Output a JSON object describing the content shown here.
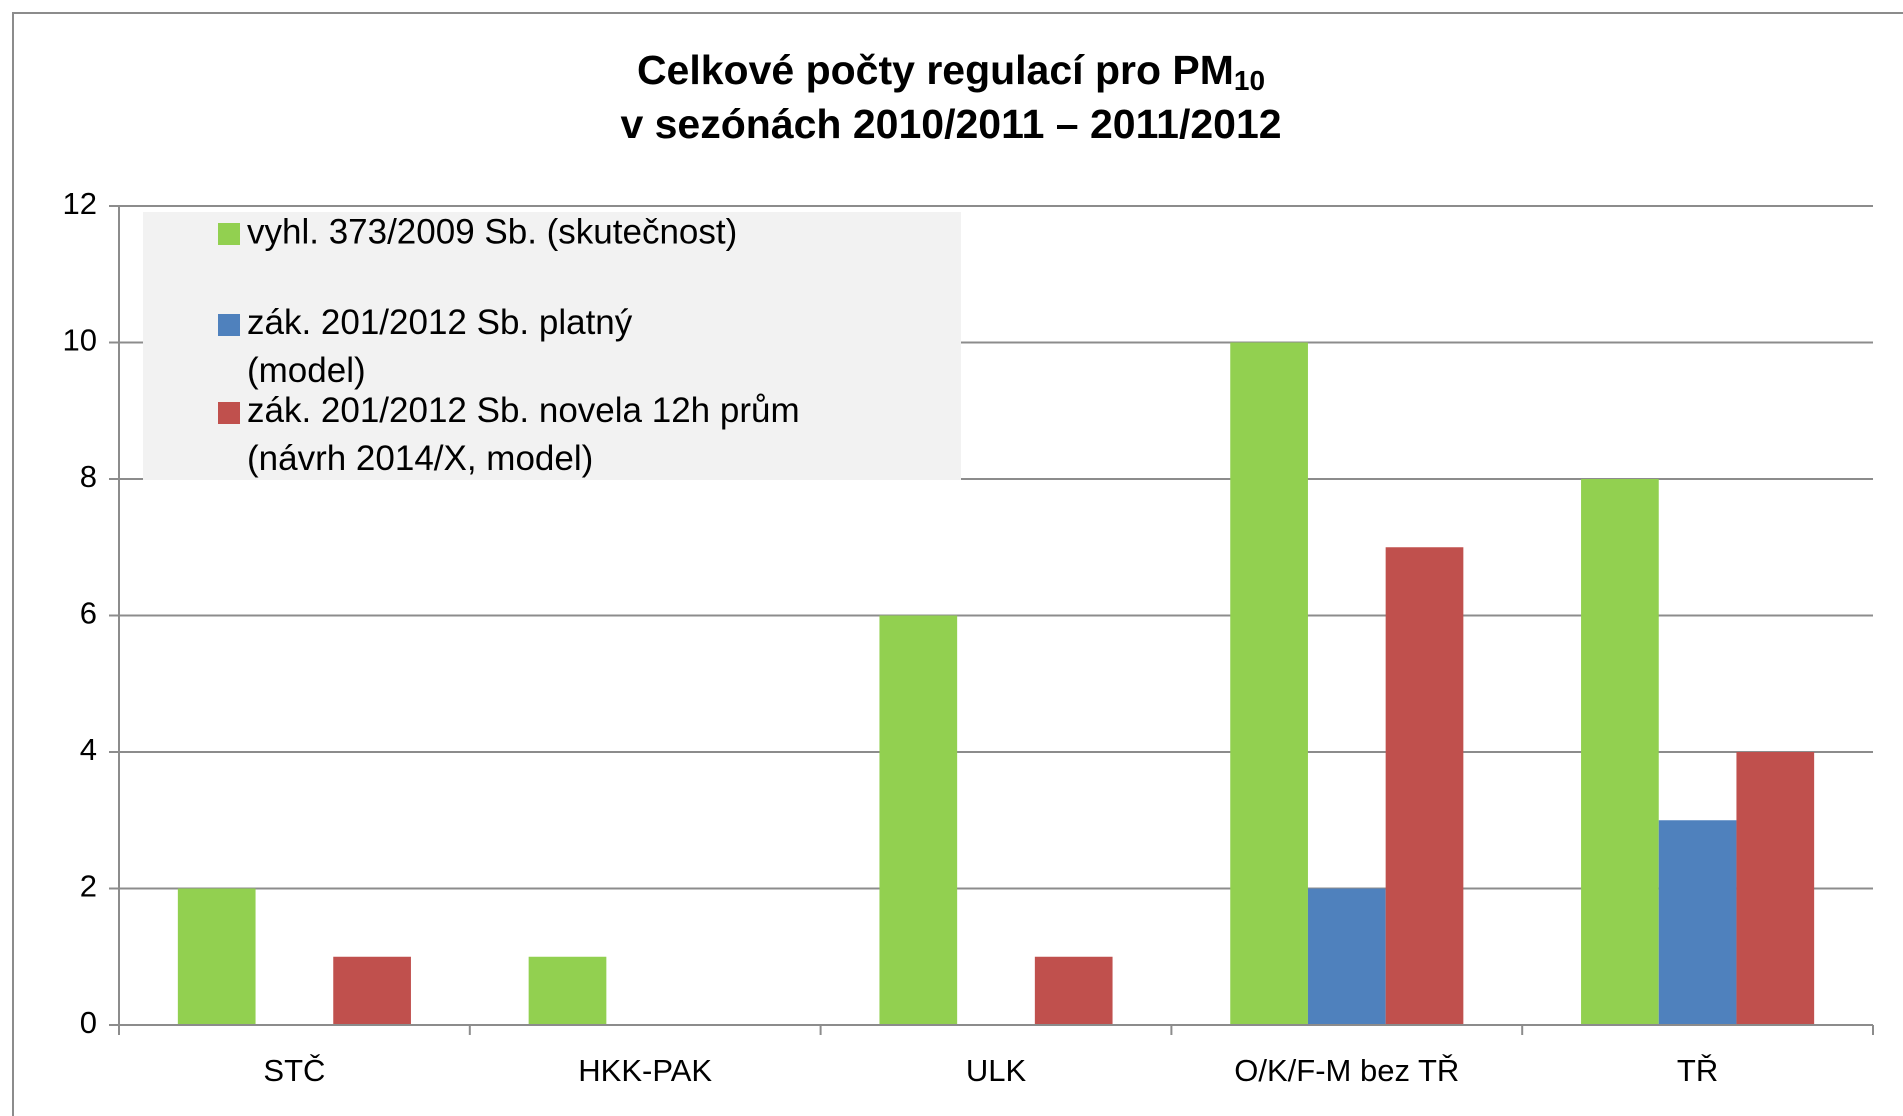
{
  "chart_data": {
    "type": "bar",
    "title": "Celkové počty regulací pro PM",
    "title_subscript": "10",
    "subtitle": "v sezónách 2010/2011 – 2011/2012",
    "categories": [
      "STČ",
      "HKK-PAK",
      "ULK",
      "O/K/F-M bez TŘ",
      "TŘ"
    ],
    "series": [
      {
        "name": "vyhl. 373/2009 Sb. (skutečnost)",
        "color": "#92d050",
        "values": [
          2,
          1,
          6,
          10,
          8
        ]
      },
      {
        "name": "zák. 201/2012 Sb. platný (model)",
        "color": "#4f81bd",
        "values": [
          0,
          0,
          0,
          2,
          3
        ]
      },
      {
        "name": "zák. 201/2012 Sb. novela 12h prům (návrh 2014/X, model)",
        "color": "#c0504d",
        "values": [
          1,
          0,
          1,
          7,
          4
        ]
      }
    ],
    "ylim": [
      0,
      12
    ],
    "yticks": [
      0,
      2,
      4,
      6,
      8,
      10,
      12
    ],
    "grid": true,
    "legend": "upper left"
  }
}
